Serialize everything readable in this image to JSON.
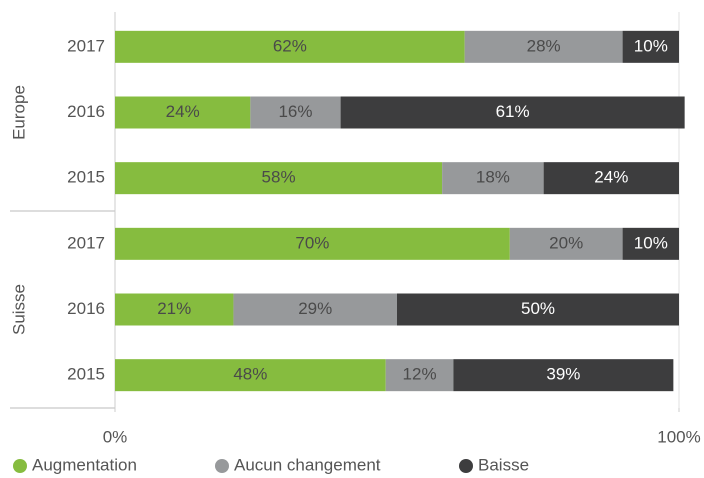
{
  "chart_data": {
    "type": "bar",
    "orientation": "horizontal",
    "stacked": true,
    "groups": [
      {
        "name": "Europe",
        "categories": [
          "2017",
          "2016",
          "2015"
        ]
      },
      {
        "name": "Suisse",
        "categories": [
          "2017",
          "2016",
          "2015"
        ]
      }
    ],
    "series": [
      {
        "name": "Augmentation",
        "color": "#86bc3f",
        "label_color": "#4a4a4a",
        "values": [
          62,
          24,
          58,
          70,
          21,
          48
        ],
        "value_labels": [
          "62%",
          "24%",
          "58%",
          "70%",
          "21%",
          "48%"
        ]
      },
      {
        "name": "Aucun changement",
        "color": "#97999b",
        "label_color": "#4a4a4a",
        "values": [
          28,
          16,
          18,
          20,
          29,
          12
        ],
        "value_labels": [
          "28%",
          "16%",
          "18%",
          "20%",
          "29%",
          "12%"
        ]
      },
      {
        "name": "Baisse",
        "color": "#3d3d3e",
        "label_color": "#ffffff",
        "values": [
          10,
          61,
          24,
          10,
          50,
          39
        ],
        "value_labels": [
          "10%",
          "61%",
          "24%",
          "10%",
          "50%",
          "39%"
        ]
      }
    ],
    "xlim": [
      0,
      100
    ],
    "xticks": [
      {
        "value": 0,
        "label": "0%"
      },
      {
        "value": 100,
        "label": "100%"
      }
    ]
  }
}
